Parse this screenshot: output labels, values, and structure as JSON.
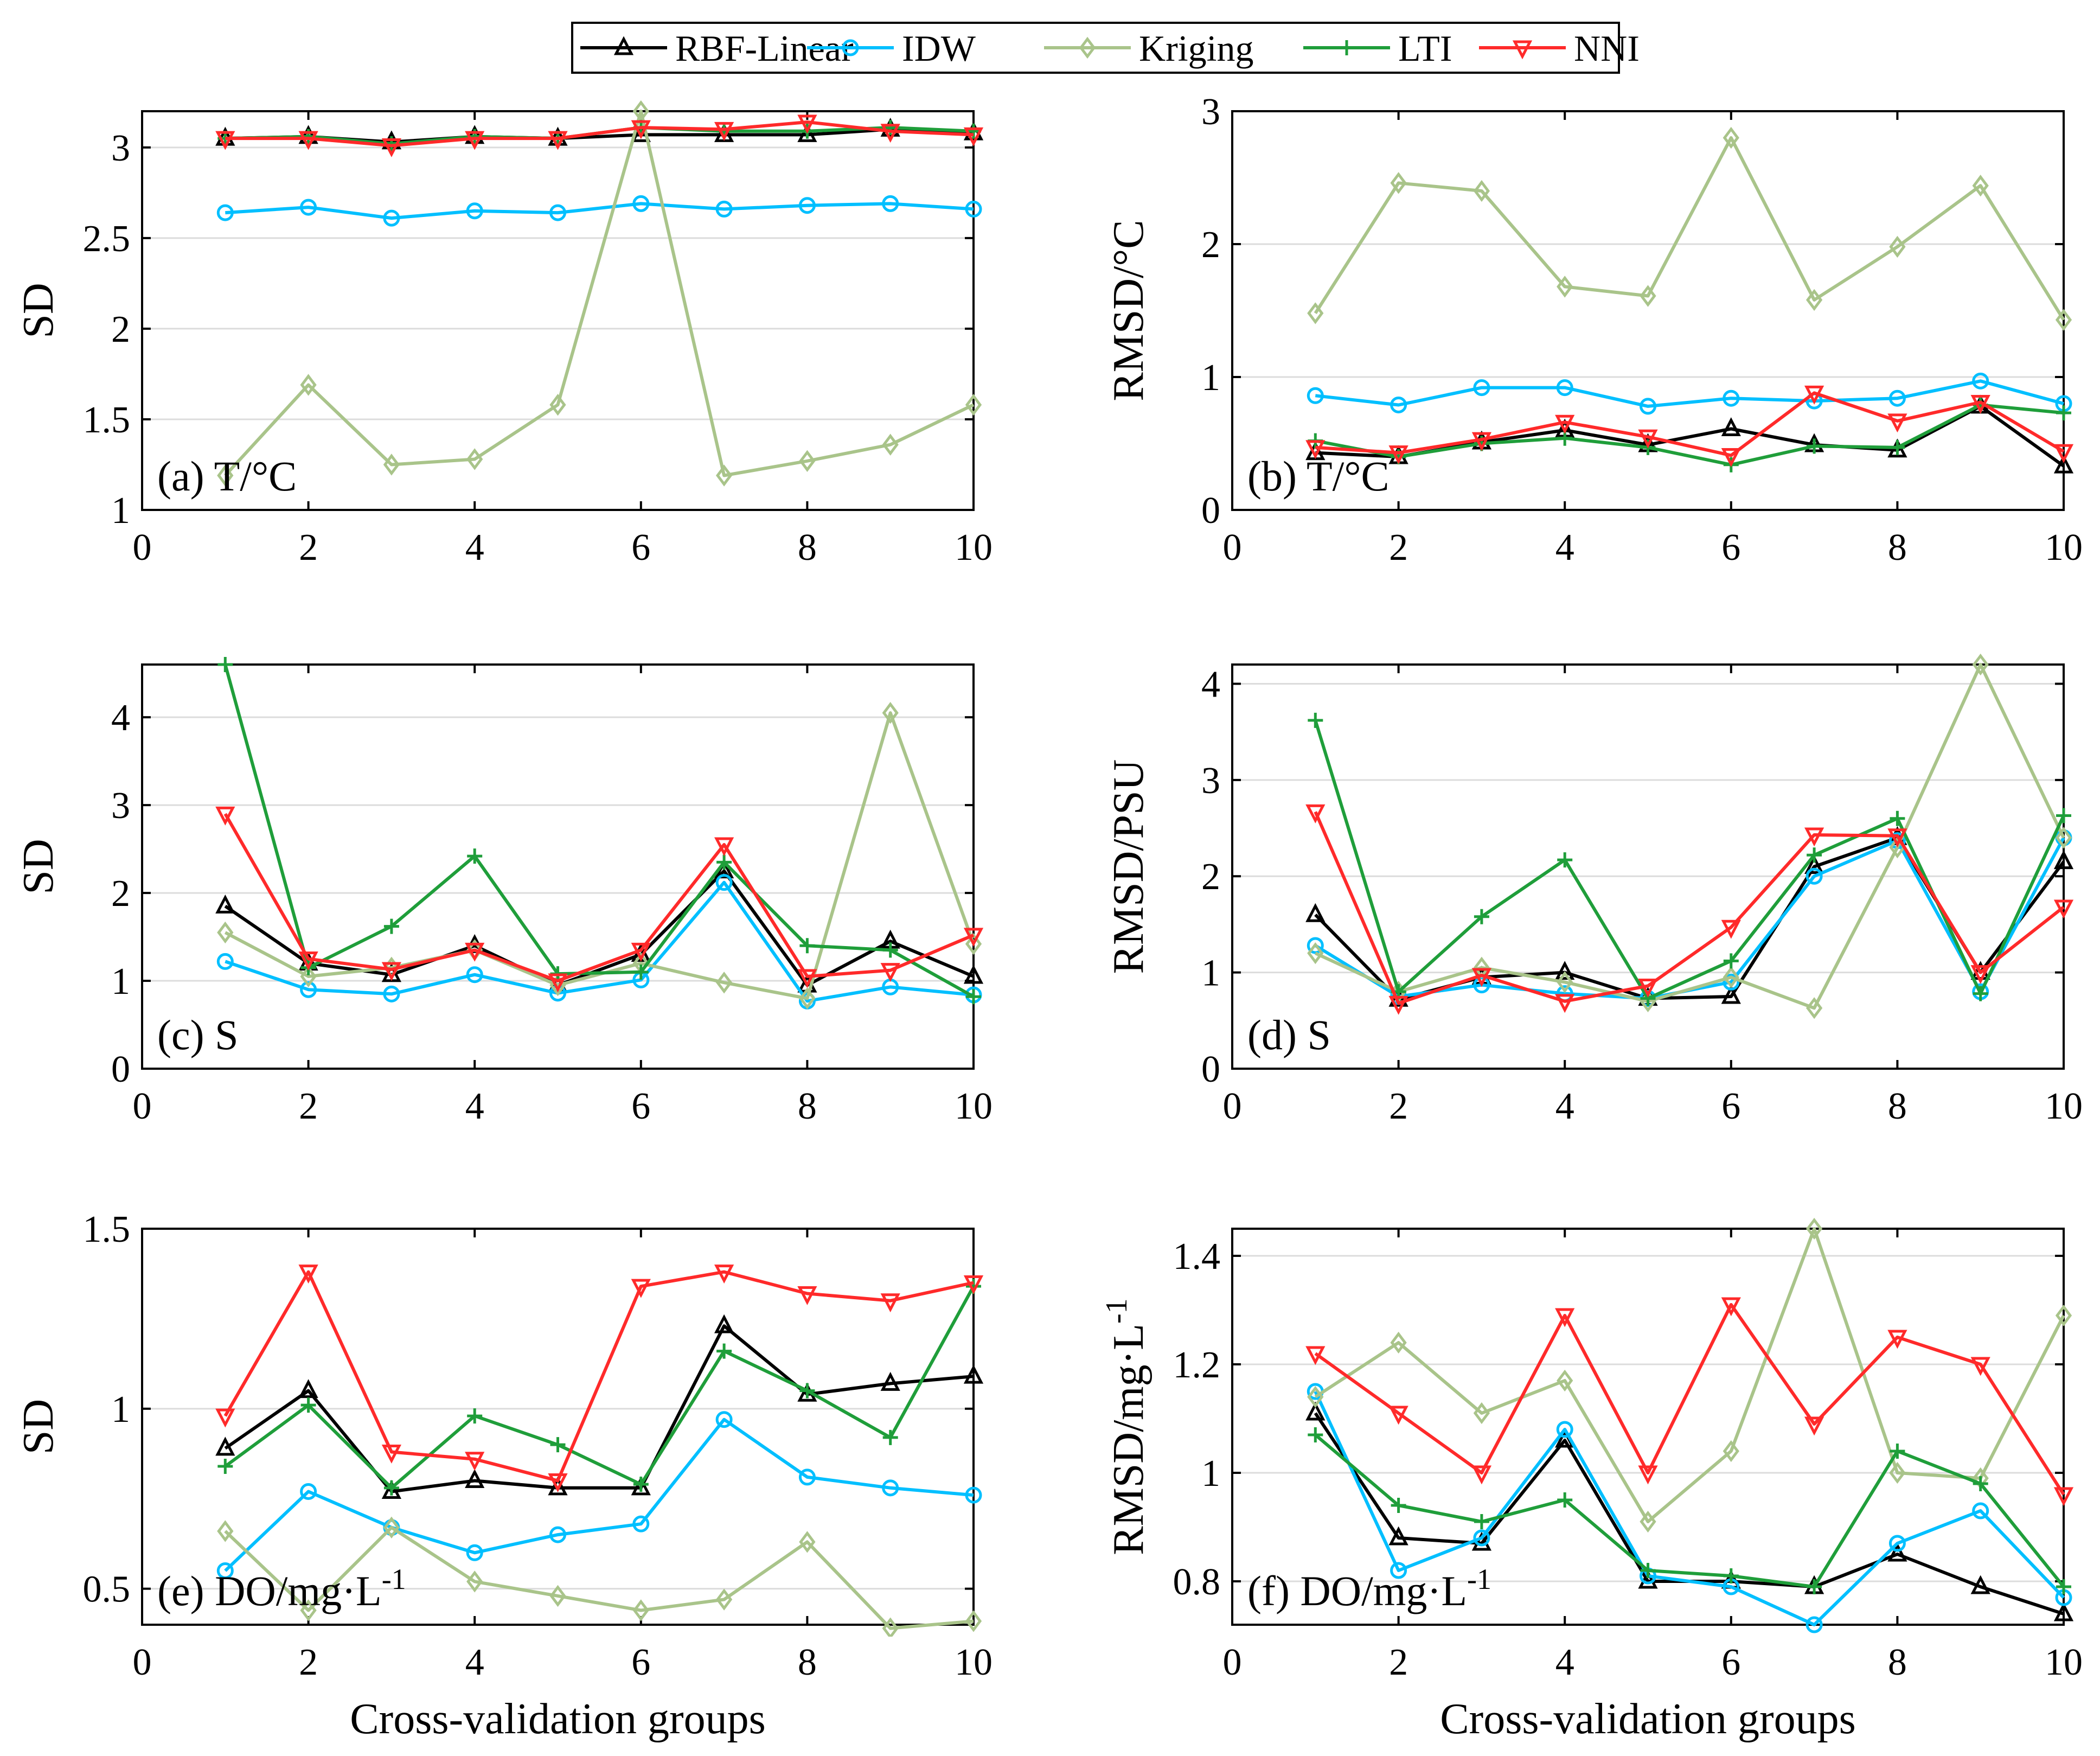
{
  "legend": {
    "entries": [
      {
        "name": "RBF-Linear",
        "color": "#000000",
        "marker": "triangle-up"
      },
      {
        "name": "IDW",
        "color": "#00bfff",
        "marker": "circle"
      },
      {
        "name": "Kriging",
        "color": "#a9c48a",
        "marker": "diamond"
      },
      {
        "name": "LTI",
        "color": "#1f9e3a",
        "marker": "plus"
      },
      {
        "name": "NNI",
        "color": "#ff2a2a",
        "marker": "triangle-down"
      }
    ]
  },
  "chart_data": [
    {
      "type": "line",
      "panel": "a",
      "annotation": "(a) T/°C",
      "xlabel": "",
      "ylabel": "SD",
      "xlim": [
        0,
        10
      ],
      "ylim": [
        1,
        3.2
      ],
      "xticks": [
        0,
        2,
        4,
        6,
        8,
        10
      ],
      "yticks": [
        1,
        1.5,
        2,
        2.5,
        3
      ],
      "ytick_labels": [
        "1",
        "1.5",
        "2",
        "2.5",
        "3"
      ],
      "grid": "horizontal",
      "x": [
        1,
        2,
        3,
        4,
        5,
        6,
        7,
        8,
        9,
        10
      ],
      "series": [
        {
          "name": "RBF-Linear",
          "values": [
            3.05,
            3.06,
            3.03,
            3.06,
            3.05,
            3.07,
            3.07,
            3.07,
            3.1,
            3.08
          ]
        },
        {
          "name": "IDW",
          "values": [
            2.64,
            2.67,
            2.61,
            2.65,
            2.64,
            2.69,
            2.66,
            2.68,
            2.69,
            2.66
          ]
        },
        {
          "name": "Kriging",
          "values": [
            1.19,
            1.69,
            1.25,
            1.28,
            1.58,
            3.2,
            1.19,
            1.27,
            1.36,
            1.58
          ]
        },
        {
          "name": "LTI",
          "values": [
            3.05,
            3.06,
            3.02,
            3.06,
            3.05,
            3.11,
            3.09,
            3.09,
            3.11,
            3.09
          ]
        },
        {
          "name": "NNI",
          "values": [
            3.05,
            3.05,
            3.01,
            3.05,
            3.05,
            3.11,
            3.1,
            3.14,
            3.09,
            3.07
          ]
        }
      ]
    },
    {
      "type": "line",
      "panel": "b",
      "annotation": "(b) T/°C",
      "xlabel": "",
      "ylabel": "RMSD/°C",
      "xlim": [
        0,
        10
      ],
      "ylim": [
        0,
        3
      ],
      "xticks": [
        0,
        2,
        4,
        6,
        8,
        10
      ],
      "yticks": [
        0,
        1,
        2,
        3
      ],
      "ytick_labels": [
        "0",
        "1",
        "2",
        "3"
      ],
      "grid": "horizontal",
      "x": [
        1,
        2,
        3,
        4,
        5,
        6,
        7,
        8,
        9,
        10
      ],
      "series": [
        {
          "name": "RBF-Linear",
          "values": [
            0.43,
            0.4,
            0.51,
            0.6,
            0.49,
            0.61,
            0.49,
            0.45,
            0.78,
            0.33
          ]
        },
        {
          "name": "IDW",
          "values": [
            0.86,
            0.79,
            0.92,
            0.92,
            0.78,
            0.84,
            0.82,
            0.84,
            0.97,
            0.8
          ]
        },
        {
          "name": "Kriging",
          "values": [
            1.48,
            2.46,
            2.4,
            1.68,
            1.61,
            2.8,
            1.58,
            1.98,
            2.44,
            1.43
          ]
        },
        {
          "name": "LTI",
          "values": [
            0.52,
            0.4,
            0.5,
            0.54,
            0.47,
            0.34,
            0.48,
            0.47,
            0.79,
            0.73
          ]
        },
        {
          "name": "NNI",
          "values": [
            0.47,
            0.43,
            0.53,
            0.66,
            0.55,
            0.41,
            0.88,
            0.67,
            0.81,
            0.44
          ]
        }
      ]
    },
    {
      "type": "line",
      "panel": "c",
      "annotation": "(c) S",
      "xlabel": "",
      "ylabel": "SD",
      "xlim": [
        0,
        10
      ],
      "ylim": [
        0,
        4.6
      ],
      "xticks": [
        0,
        2,
        4,
        6,
        8,
        10
      ],
      "yticks": [
        0,
        1,
        2,
        3,
        4
      ],
      "ytick_labels": [
        "0",
        "1",
        "2",
        "3",
        "4"
      ],
      "grid": "horizontal",
      "x": [
        1,
        2,
        3,
        4,
        5,
        6,
        7,
        8,
        9,
        10
      ],
      "series": [
        {
          "name": "RBF-Linear",
          "values": [
            1.85,
            1.2,
            1.07,
            1.4,
            0.95,
            1.3,
            2.25,
            0.95,
            1.45,
            1.05
          ]
        },
        {
          "name": "IDW",
          "values": [
            1.22,
            0.9,
            0.85,
            1.07,
            0.86,
            1.01,
            2.12,
            0.77,
            0.93,
            0.84
          ]
        },
        {
          "name": "Kriging",
          "values": [
            1.55,
            1.05,
            1.15,
            1.35,
            0.95,
            1.2,
            0.98,
            0.8,
            4.05,
            1.42
          ]
        },
        {
          "name": "LTI",
          "values": [
            4.6,
            1.15,
            1.62,
            2.42,
            1.08,
            1.1,
            2.35,
            1.4,
            1.35,
            0.82
          ]
        },
        {
          "name": "NNI",
          "values": [
            2.9,
            1.25,
            1.13,
            1.35,
            1.0,
            1.35,
            2.55,
            1.05,
            1.12,
            1.52
          ]
        }
      ]
    },
    {
      "type": "line",
      "panel": "d",
      "annotation": "(d) S",
      "xlabel": "",
      "ylabel": "RMSD/PSU",
      "xlim": [
        0,
        10
      ],
      "ylim": [
        0,
        4.2
      ],
      "xticks": [
        0,
        2,
        4,
        6,
        8,
        10
      ],
      "yticks": [
        0,
        1,
        2,
        3,
        4
      ],
      "ytick_labels": [
        "0",
        "1",
        "2",
        "3",
        "4"
      ],
      "grid": "horizontal",
      "x": [
        1,
        2,
        3,
        4,
        5,
        6,
        7,
        8,
        9,
        10
      ],
      "series": [
        {
          "name": "RBF-Linear",
          "values": [
            1.6,
            0.72,
            0.95,
            1.0,
            0.73,
            0.75,
            2.1,
            2.4,
            1.0,
            2.15
          ]
        },
        {
          "name": "IDW",
          "values": [
            1.28,
            0.75,
            0.87,
            0.78,
            0.73,
            0.9,
            2.0,
            2.37,
            0.8,
            2.4
          ]
        },
        {
          "name": "Kriging",
          "values": [
            1.2,
            0.8,
            1.05,
            0.9,
            0.7,
            0.95,
            0.63,
            2.3,
            4.2,
            2.4
          ]
        },
        {
          "name": "LTI",
          "values": [
            3.62,
            0.8,
            1.58,
            2.17,
            0.73,
            1.12,
            2.22,
            2.6,
            0.78,
            2.63
          ]
        },
        {
          "name": "NNI",
          "values": [
            2.67,
            0.68,
            0.97,
            0.7,
            0.86,
            1.47,
            2.43,
            2.42,
            1.0,
            1.68
          ]
        }
      ]
    },
    {
      "type": "line",
      "panel": "e",
      "annotation": "(e) DO/mg·L",
      "annotation_sup": "-1",
      "xlabel": "Cross-validation groups",
      "ylabel": "SD",
      "xlim": [
        0,
        10
      ],
      "ylim": [
        0.4,
        1.5
      ],
      "xticks": [
        0,
        2,
        4,
        6,
        8,
        10
      ],
      "yticks": [
        0.5,
        1,
        1.5
      ],
      "ytick_labels": [
        "0.5",
        "1",
        "1.5"
      ],
      "grid": "horizontal",
      "x": [
        1,
        2,
        3,
        4,
        5,
        6,
        7,
        8,
        9,
        10
      ],
      "series": [
        {
          "name": "RBF-Linear",
          "values": [
            0.89,
            1.05,
            0.77,
            0.8,
            0.78,
            0.78,
            1.23,
            1.04,
            1.07,
            1.09
          ]
        },
        {
          "name": "IDW",
          "values": [
            0.55,
            0.77,
            0.67,
            0.6,
            0.65,
            0.68,
            0.97,
            0.81,
            0.78,
            0.76
          ]
        },
        {
          "name": "Kriging",
          "values": [
            0.66,
            0.44,
            0.67,
            0.52,
            0.48,
            0.44,
            0.47,
            0.63,
            0.39,
            0.41
          ]
        },
        {
          "name": "LTI",
          "values": [
            0.84,
            1.01,
            0.78,
            0.98,
            0.9,
            0.79,
            1.16,
            1.05,
            0.92,
            1.34
          ]
        },
        {
          "name": "NNI",
          "values": [
            0.98,
            1.38,
            0.88,
            0.86,
            0.8,
            1.34,
            1.38,
            1.32,
            1.3,
            1.35
          ]
        }
      ]
    },
    {
      "type": "line",
      "panel": "f",
      "annotation": "(f) DO/mg·L",
      "annotation_sup": "-1",
      "xlabel": "Cross-validation groups",
      "ylabel": "RMSD/mg·L",
      "ylabel_sup": "-1",
      "xlim": [
        0,
        10
      ],
      "ylim": [
        0.72,
        1.45
      ],
      "xticks": [
        0,
        2,
        4,
        6,
        8,
        10
      ],
      "yticks": [
        0.8,
        1,
        1.2,
        1.4
      ],
      "ytick_labels": [
        "0.8",
        "1",
        "1.2",
        "1.4"
      ],
      "grid": "horizontal",
      "x": [
        1,
        2,
        3,
        4,
        5,
        6,
        7,
        8,
        9,
        10
      ],
      "series": [
        {
          "name": "RBF-Linear",
          "values": [
            1.11,
            0.88,
            0.87,
            1.06,
            0.8,
            0.8,
            0.79,
            0.85,
            0.79,
            0.74
          ]
        },
        {
          "name": "IDW",
          "values": [
            1.15,
            0.82,
            0.88,
            1.08,
            0.81,
            0.79,
            0.72,
            0.87,
            0.93,
            0.77
          ]
        },
        {
          "name": "Kriging",
          "values": [
            1.14,
            1.24,
            1.11,
            1.17,
            0.91,
            1.04,
            1.45,
            1.0,
            0.99,
            1.29
          ]
        },
        {
          "name": "LTI",
          "values": [
            1.07,
            0.94,
            0.91,
            0.95,
            0.82,
            0.81,
            0.79,
            1.04,
            0.98,
            0.79
          ]
        },
        {
          "name": "NNI",
          "values": [
            1.22,
            1.11,
            1.0,
            1.29,
            1.0,
            1.31,
            1.09,
            1.25,
            1.2,
            0.96
          ]
        }
      ]
    }
  ]
}
